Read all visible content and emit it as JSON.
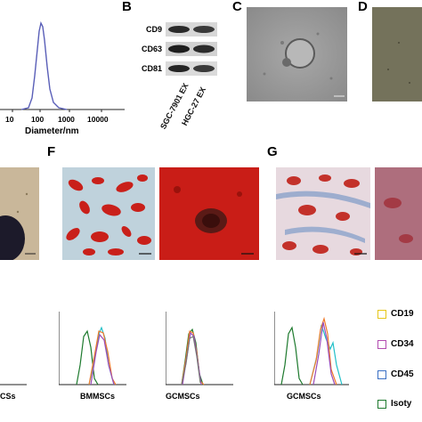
{
  "panels": {
    "A": {
      "xlabel": "Diameter/nm",
      "ticks": [
        "10",
        "100",
        "1000",
        "10000"
      ],
      "series_color": "#5a5fb8"
    },
    "B": {
      "letter": "B",
      "proteins": [
        "CD9",
        "CD63",
        "CD81"
      ],
      "lanes": [
        "SGC-7901 EX",
        "HGC-27 EX"
      ]
    },
    "C": {
      "letter": "C"
    },
    "D": {
      "letter": "D"
    },
    "F": {
      "letter": "F"
    },
    "G": {
      "letter": "G"
    }
  },
  "flow": {
    "xlabels": [
      "CSs",
      "BMMSCs",
      "GCMSCs",
      "GCMSCs"
    ],
    "legend": [
      {
        "label": "CD19",
        "color": "#e6c619"
      },
      {
        "label": "CD34",
        "color": "#b24bb0"
      },
      {
        "label": "CD45",
        "color": "#3a6fc4"
      },
      {
        "label": "Isoty",
        "color": "#1e7a2e"
      }
    ],
    "colors": {
      "green": "#1e7a2e",
      "cyan": "#22c0c8",
      "orange": "#f07a2a",
      "purple": "#9a4cb8",
      "gray": "#777777"
    }
  }
}
